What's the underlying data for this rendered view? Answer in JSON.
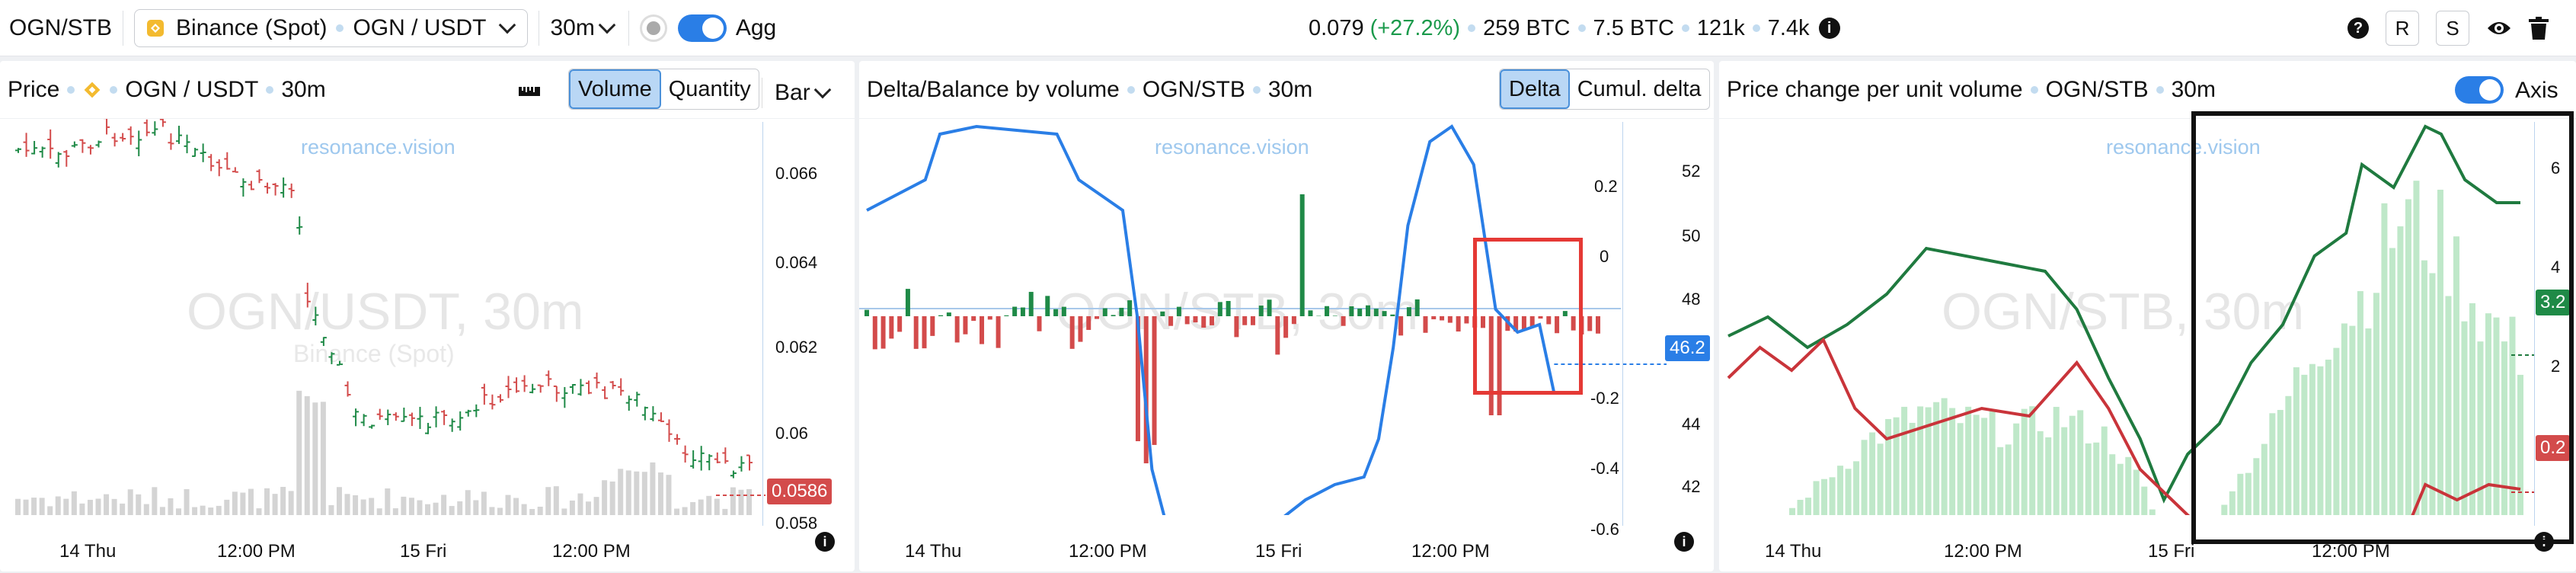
{
  "topbar": {
    "symbol": "OGN/STB",
    "exchange": "Binance (Spot)",
    "pair": "OGN / USDT",
    "interval": "30m",
    "agg_label": "Agg",
    "price": "0.079",
    "change": "(+27.2%)",
    "volume_btc": "259 BTC",
    "volume_btc2": "7.5 BTC",
    "trades": "121k",
    "other": "7.4k",
    "help": "?",
    "btn_r": "R",
    "btn_s": "S"
  },
  "panel1": {
    "title": "Price",
    "pair": "OGN / USDT",
    "interval": "30m",
    "seg": [
      "Volume",
      "Quantity"
    ],
    "chart_type": "Bar",
    "watermark": "OGN/USDT, 30m",
    "watermark_sub": "Binance (Spot)",
    "url": "resonance.vision",
    "y_ticks": [
      "0.066",
      "0.064",
      "0.062",
      "0.06",
      "0.058"
    ],
    "price_tag": "0.0586",
    "x_ticks": [
      "14 Thu",
      "12:00 PM",
      "15 Fri",
      "12:00 PM"
    ]
  },
  "panel2": {
    "title": "Delta/Balance by volume",
    "symbol": "OGN/STB",
    "interval": "30m",
    "seg": [
      "Delta",
      "Cumul. delta"
    ],
    "watermark": "OGN/STB, 30m",
    "url": "resonance.vision",
    "left_ticks": [
      "0.2",
      "0",
      "-0.2",
      "-0.4",
      "-0.6"
    ],
    "right_ticks": [
      "52",
      "50",
      "48",
      "46",
      "44",
      "42"
    ],
    "balance_tag": "46.2",
    "x_ticks": [
      "14 Thu",
      "12:00 PM",
      "15 Fri",
      "12:00 PM"
    ]
  },
  "panel3": {
    "title": "Price change per unit volume",
    "symbol": "OGN/STB",
    "interval": "30m",
    "axis_label": "Axis",
    "watermark": "OGN/STB, 30m",
    "url": "resonance.vision",
    "y_ticks": [
      "6",
      "4",
      "2"
    ],
    "tag_green": "3.2",
    "tag_red": "0.2",
    "x_ticks": [
      "14 Thu",
      "12:00 PM",
      "15 Fri",
      "12:00 PM"
    ]
  },
  "colors": {
    "accent": "#2a7ee6",
    "up": "#1f8a47",
    "down": "#d34b4b",
    "highlight": "#e53935"
  }
}
